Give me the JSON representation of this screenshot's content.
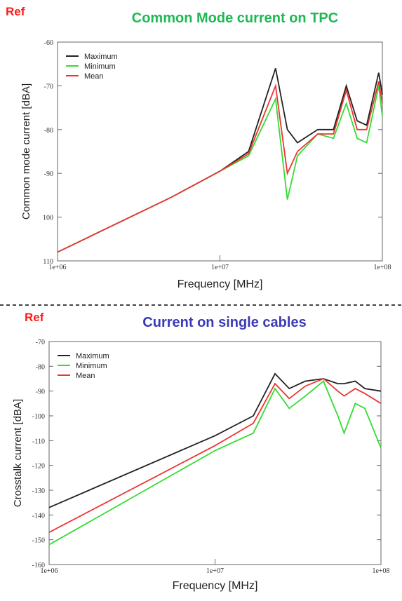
{
  "chart_data": [
    {
      "type": "line",
      "ref_label": "Ref",
      "title": "Common Mode current on TPC",
      "title_color": "#1db954",
      "x_label": "Frequency [MHz]",
      "y_label": "Common mode current [dBA]",
      "xscale": "log",
      "xlim": [
        1000000,
        100000000
      ],
      "xticks": [
        {
          "value": 1000000,
          "label": "1e+06"
        },
        {
          "value": 10000000,
          "label": "1e+07"
        },
        {
          "value": 100000000,
          "label": "1e+08"
        }
      ],
      "ylim": [
        -110,
        -60
      ],
      "yticks": [
        -60,
        -70,
        -80,
        -90,
        {
          "value": -100,
          "label": "100"
        },
        {
          "value": -110,
          "label": "110"
        }
      ],
      "legend": "upper left",
      "x": [
        1000000,
        5000000,
        10000000,
        15000000,
        22000000,
        26000000,
        30000000,
        40000000,
        50000000,
        60000000,
        70000000,
        80000000,
        95000000,
        100000000
      ],
      "series": [
        {
          "name": "Maximum",
          "color": "#222222",
          "values": [
            -108,
            -95.5,
            -89.5,
            -85,
            -66,
            -80,
            -83,
            -80,
            -80,
            -70,
            -78,
            -79,
            -67,
            -72
          ]
        },
        {
          "name": "Minimum",
          "color": "#33dd33",
          "values": [
            -108,
            -95.5,
            -89.5,
            -86,
            -73,
            -96,
            -86,
            -81,
            -82,
            -74,
            -82,
            -83,
            -70,
            -77
          ]
        },
        {
          "name": "Mean",
          "color": "#ee3333",
          "values": [
            -108,
            -95.5,
            -89.5,
            -85.5,
            -70,
            -90,
            -85,
            -81,
            -81,
            -71,
            -80,
            -80,
            -69,
            -74
          ]
        }
      ]
    },
    {
      "type": "line",
      "ref_label": "Ref",
      "title": "Current on single cables",
      "title_color": "#3a3ab8",
      "x_label": "Frequency [MHz]",
      "y_label": "Crosstalk current [dBA]",
      "xscale": "log",
      "xlim": [
        1000000,
        100000000
      ],
      "xticks": [
        {
          "value": 1000000,
          "label": "1e+06"
        },
        {
          "value": 10000000,
          "label": "1e+07"
        },
        {
          "value": 100000000,
          "label": "1e+08"
        }
      ],
      "ylim": [
        -160,
        -70
      ],
      "yticks": [
        -70,
        -80,
        -90,
        -100,
        -110,
        -120,
        -130,
        -140,
        -150,
        -160
      ],
      "legend": "upper left",
      "x": [
        1000000,
        10000000,
        17000000,
        23000000,
        28000000,
        35000000,
        45000000,
        55000000,
        60000000,
        70000000,
        80000000,
        100000000
      ],
      "series": [
        {
          "name": "Maximum",
          "color": "#222222",
          "values": [
            -137,
            -108,
            -100,
            -83,
            -89,
            -86,
            -85,
            -87,
            -87,
            -86,
            -89,
            -90
          ]
        },
        {
          "name": "Minimum",
          "color": "#33dd33",
          "values": [
            -152,
            -114,
            -107,
            -89,
            -97,
            -92,
            -86,
            -100,
            -107,
            -95,
            -97,
            -113
          ]
        },
        {
          "name": "Mean",
          "color": "#ee3333",
          "values": [
            -147,
            -112,
            -103,
            -87,
            -93,
            -88,
            -85,
            -90,
            -92,
            -89,
            -91,
            -95
          ]
        }
      ]
    }
  ]
}
